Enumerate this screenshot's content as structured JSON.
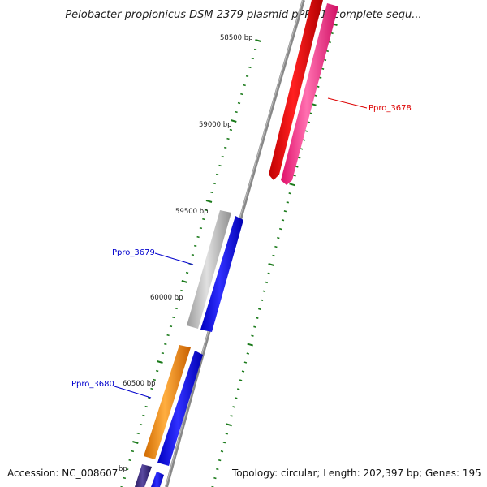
{
  "title": "Pelobacter propionicus DSM 2379 plasmid pPRO1, complete sequ...",
  "footer": {
    "accession": "Accession: NC_008607",
    "summary": "Topology: circular; Length: 202,397 bp; Genes: 195"
  },
  "ticks": [
    {
      "label": "58500 bp"
    },
    {
      "label": "59000 bp"
    },
    {
      "label": "59500 bp"
    },
    {
      "label": "60000 bp"
    },
    {
      "label": "60500 bp"
    },
    {
      "label": "bp"
    }
  ],
  "genes": [
    {
      "label": "Ppro_3678",
      "color": "#ff2080"
    },
    {
      "label": "Ppro_3679",
      "color": "#0000ff"
    },
    {
      "label": "Ppro_3680",
      "color": "#0000ff"
    }
  ],
  "colors": {
    "backbone": "#888888",
    "tick": "#1a7a1a",
    "red_gene": "#ee0000",
    "pink_gene": "#ff2a8a",
    "blue_gene": "#0000ff",
    "gray_gene": "#b0b0b0",
    "orange_gene": "#ff8c00",
    "purple_gene": "#3a2a80",
    "label_red": "#dd0000",
    "label_blue": "#0000cc"
  }
}
